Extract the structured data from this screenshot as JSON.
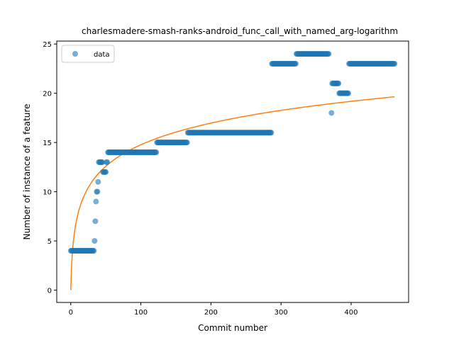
{
  "chart_data": {
    "type": "scatter",
    "title": "charlesmadere-smash-ranks-android_func_call_with_named_arg-logarithm",
    "xlabel": "Commit number",
    "ylabel": "Number of instance of a feature",
    "xlim": [
      -20,
      482
    ],
    "ylim": [
      -1.25,
      25.3
    ],
    "xticks": [
      0,
      100,
      200,
      300,
      400
    ],
    "yticks": [
      0,
      5,
      10,
      15,
      20,
      25
    ],
    "legend": {
      "placement": "top-left",
      "entries": [
        "data"
      ]
    },
    "grid": false,
    "colors": {
      "data": "#1f77b4",
      "fit": "#ff7f0e"
    },
    "series": [
      {
        "name": "data",
        "kind": "scatter",
        "segments": [
          {
            "x_start": 0,
            "x_end": 33,
            "y": 4
          },
          {
            "x_start": 34,
            "x_end": 34,
            "y": 5
          },
          {
            "x_start": 35,
            "x_end": 35,
            "y": 7
          },
          {
            "x_start": 36,
            "x_end": 36,
            "y": 9
          },
          {
            "x_start": 37,
            "x_end": 38,
            "y": 10
          },
          {
            "x_start": 39,
            "x_end": 39,
            "y": 11
          },
          {
            "x_start": 40,
            "x_end": 45,
            "y": 13
          },
          {
            "x_start": 46,
            "x_end": 50,
            "y": 12
          },
          {
            "x_start": 51,
            "x_end": 52,
            "y": 13
          },
          {
            "x_start": 53,
            "x_end": 122,
            "y": 14
          },
          {
            "x_start": 123,
            "x_end": 166,
            "y": 15
          },
          {
            "x_start": 167,
            "x_end": 286,
            "y": 16
          },
          {
            "x_start": 287,
            "x_end": 321,
            "y": 23
          },
          {
            "x_start": 322,
            "x_end": 368,
            "y": 24
          },
          {
            "x_start": 372,
            "x_end": 372,
            "y": 18
          },
          {
            "x_start": 373,
            "x_end": 382,
            "y": 21
          },
          {
            "x_start": 383,
            "x_end": 396,
            "y": 20
          },
          {
            "x_start": 397,
            "x_end": 462,
            "y": 23
          }
        ]
      },
      {
        "name": "",
        "kind": "line",
        "model": "logarithmic",
        "coefficients": {
          "a": 3.2,
          "b": 1.0
        },
        "x_range": [
          0,
          462
        ]
      }
    ]
  }
}
